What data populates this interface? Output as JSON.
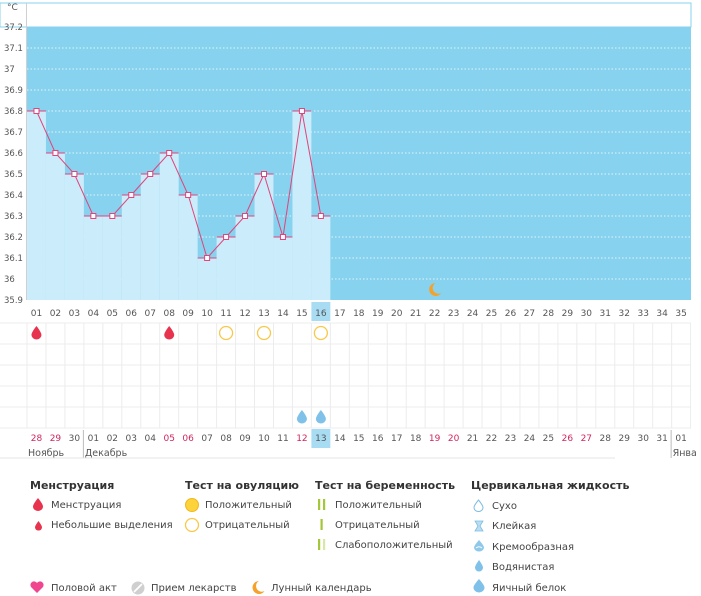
{
  "chart_data": {
    "type": "line",
    "ylabel": "°C",
    "ylim": [
      35.9,
      37.2
    ],
    "yticks": [
      "37.2",
      "37.1",
      "37",
      "36.9",
      "36.8",
      "36.7",
      "36.6",
      "36.5",
      "36.4",
      "36.3",
      "36.2",
      "36.1",
      "36",
      "35.9"
    ],
    "cycle_days": [
      "01",
      "02",
      "03",
      "04",
      "05",
      "06",
      "07",
      "08",
      "09",
      "10",
      "11",
      "12",
      "13",
      "14",
      "15",
      "16",
      "17",
      "18",
      "19",
      "20",
      "21",
      "22",
      "23",
      "24",
      "25",
      "26",
      "27",
      "28",
      "29",
      "30",
      "31",
      "32",
      "33",
      "34",
      "35"
    ],
    "temperatures": [
      36.8,
      36.6,
      36.5,
      36.3,
      36.3,
      36.4,
      36.5,
      36.6,
      36.4,
      36.1,
      36.2,
      36.3,
      36.5,
      36.2,
      36.8,
      36.3
    ],
    "current_cycle_day": "16",
    "moon_cycle_day": 22,
    "menstruation_days": [
      1,
      8
    ],
    "ovulation_negative_days": [
      11,
      13,
      16
    ],
    "cervical_fluid_watery_days": [
      15,
      16
    ],
    "colors": {
      "background": "#87d2ee",
      "bar_fill": "#cbecfa",
      "line": "#e0447a",
      "highlight": "#a8dcf2",
      "red_date": "#d1255c",
      "moon": "#f5a12a"
    },
    "calendar": {
      "dates": [
        "28",
        "29",
        "30",
        "01",
        "02",
        "03",
        "04",
        "05",
        "06",
        "07",
        "08",
        "09",
        "10",
        "11",
        "12",
        "13",
        "14",
        "15",
        "16",
        "17",
        "18",
        "19",
        "20",
        "21",
        "22",
        "23",
        "24",
        "25",
        "26",
        "27",
        "28",
        "29",
        "30",
        "31",
        "01"
      ],
      "red_dates_index": [
        0,
        1,
        7,
        8,
        14,
        21,
        22,
        28,
        29
      ],
      "today_index": 15,
      "months": [
        {
          "label": "Ноябрь",
          "start_index": 0
        },
        {
          "label": "Декабрь",
          "start_index": 3
        },
        {
          "label": "Янва",
          "start_index": 34
        }
      ]
    }
  },
  "legend": {
    "menstruation": {
      "title": "Менструация",
      "items": [
        "Менструация",
        "Небольшие выделения"
      ]
    },
    "ovulation_test": {
      "title": "Тест на овуляцию",
      "items": [
        "Положительный",
        "Отрицательный"
      ]
    },
    "pregnancy_test": {
      "title": "Тест на беременность",
      "items": [
        "Положительный",
        "Отрицательный",
        "Слабоположительный"
      ]
    },
    "cervical_fluid": {
      "title": "Цервикальная жидкость",
      "items": [
        "Сухо",
        "Клейкая",
        "Кремообразная",
        "Водянистая",
        "Яичный белок"
      ]
    },
    "other": [
      "Половой акт",
      "Прием лекарств",
      "Лунный календарь"
    ]
  }
}
